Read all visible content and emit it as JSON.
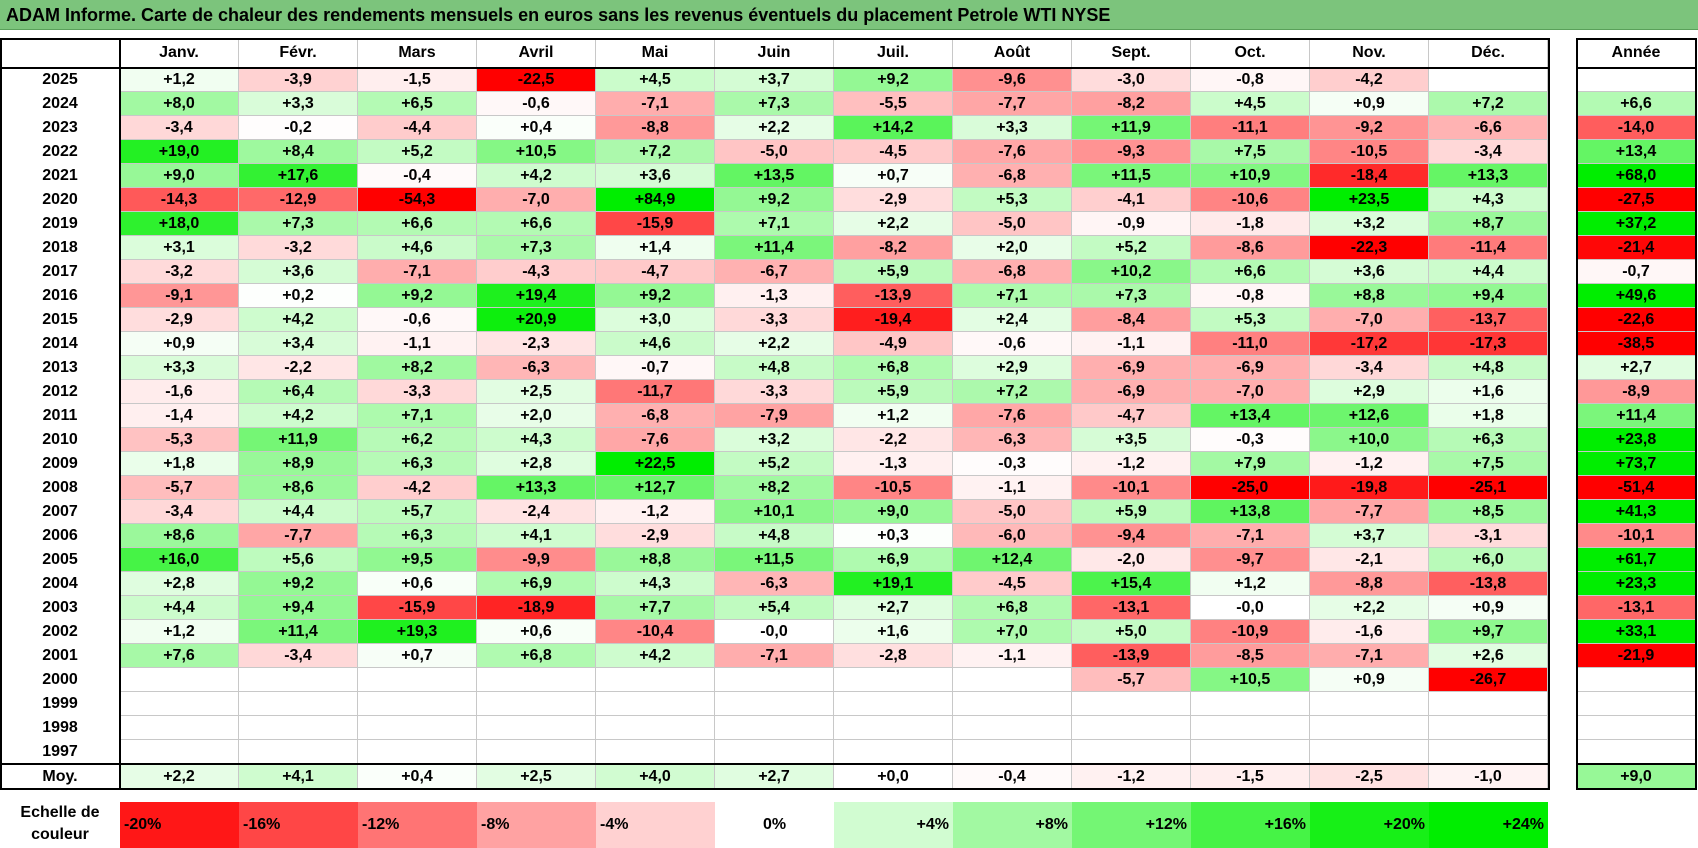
{
  "title": "ADAM Informe. Carte de chaleur des rendements mensuels en euros sans les revenus éventuels du placement Petrole WTI NYSE",
  "colors": {
    "title_bg": "#7cc47c",
    "positive_max": "#00ee00",
    "negative_max": "#ff0000",
    "neutral": "#ffffff"
  },
  "chart_data": {
    "type": "heatmap",
    "title": "ADAM Informe. Carte de chaleur des rendements mensuels en euros sans les revenus éventuels du placement Petrole WTI NYSE",
    "columns": [
      "Janv.",
      "Févr.",
      "Mars",
      "Avril",
      "Mai",
      "Juin",
      "Juil.",
      "Août",
      "Sept.",
      "Oct.",
      "Nov.",
      "Déc."
    ],
    "year_column_label": "Année",
    "rows": [
      {
        "year": "2025",
        "values": [
          1.2,
          -3.9,
          -1.5,
          -22.5,
          4.5,
          3.7,
          9.2,
          -9.6,
          -3.0,
          -0.8,
          -4.2,
          null
        ],
        "annual": null
      },
      {
        "year": "2024",
        "values": [
          8.0,
          3.3,
          6.5,
          -0.6,
          -7.1,
          7.3,
          -5.5,
          -7.7,
          -8.2,
          4.5,
          0.9,
          7.2
        ],
        "annual": 6.6
      },
      {
        "year": "2023",
        "values": [
          -3.4,
          -0.2,
          -4.4,
          0.4,
          -8.8,
          2.2,
          14.2,
          3.3,
          11.9,
          -11.1,
          -9.2,
          -6.6
        ],
        "annual": -14.0
      },
      {
        "year": "2022",
        "values": [
          19.0,
          8.4,
          5.2,
          10.5,
          7.2,
          -5.0,
          -4.5,
          -7.6,
          -9.3,
          7.5,
          -10.5,
          -3.4
        ],
        "annual": 13.4
      },
      {
        "year": "2021",
        "values": [
          9.0,
          17.6,
          -0.4,
          4.2,
          3.6,
          13.5,
          0.7,
          -6.8,
          11.5,
          10.9,
          -18.4,
          13.3
        ],
        "annual": 68.0
      },
      {
        "year": "2020",
        "values": [
          -14.3,
          -12.9,
          -54.3,
          -7.0,
          84.9,
          9.2,
          -2.9,
          5.3,
          -4.1,
          -10.6,
          23.5,
          4.3
        ],
        "annual": -27.5
      },
      {
        "year": "2019",
        "values": [
          18.0,
          7.3,
          6.6,
          6.6,
          -15.9,
          7.1,
          2.2,
          -5.0,
          -0.9,
          -1.8,
          3.2,
          8.7
        ],
        "annual": 37.2
      },
      {
        "year": "2018",
        "values": [
          3.1,
          -3.2,
          4.6,
          7.3,
          1.4,
          11.4,
          -8.2,
          2.0,
          5.2,
          -8.6,
          -22.3,
          -11.4
        ],
        "annual": -21.4
      },
      {
        "year": "2017",
        "values": [
          -3.2,
          3.6,
          -7.1,
          -4.3,
          -4.7,
          -6.7,
          5.9,
          -6.8,
          10.2,
          6.6,
          3.6,
          4.4
        ],
        "annual": -0.7
      },
      {
        "year": "2016",
        "values": [
          -9.1,
          0.2,
          9.2,
          19.4,
          9.2,
          -1.3,
          -13.9,
          7.1,
          7.3,
          -0.8,
          8.8,
          9.4
        ],
        "annual": 49.6
      },
      {
        "year": "2015",
        "values": [
          -2.9,
          4.2,
          -0.6,
          20.9,
          3.0,
          -3.3,
          -19.4,
          2.4,
          -8.4,
          5.3,
          -7.0,
          -13.7
        ],
        "annual": -22.6
      },
      {
        "year": "2014",
        "values": [
          0.9,
          3.4,
          -1.1,
          -2.3,
          4.6,
          2.2,
          -4.9,
          -0.6,
          -1.1,
          -11.0,
          -17.2,
          -17.3
        ],
        "annual": -38.5
      },
      {
        "year": "2013",
        "values": [
          3.3,
          -2.2,
          8.2,
          -6.3,
          -0.7,
          4.8,
          6.8,
          2.9,
          -6.9,
          -6.9,
          -3.4,
          4.8
        ],
        "annual": 2.7
      },
      {
        "year": "2012",
        "values": [
          -1.6,
          6.4,
          -3.3,
          2.5,
          -11.7,
          -3.3,
          5.9,
          7.2,
          -6.9,
          -7.0,
          2.9,
          1.6
        ],
        "annual": -8.9
      },
      {
        "year": "2011",
        "values": [
          -1.4,
          4.2,
          7.1,
          2.0,
          -6.8,
          -7.9,
          1.2,
          -7.6,
          -4.7,
          13.4,
          12.6,
          1.8
        ],
        "annual": 11.4
      },
      {
        "year": "2010",
        "values": [
          -5.3,
          11.9,
          6.2,
          4.3,
          -7.6,
          3.2,
          -2.2,
          -6.3,
          3.5,
          -0.3,
          10.0,
          6.3
        ],
        "annual": 23.8
      },
      {
        "year": "2009",
        "values": [
          1.8,
          8.9,
          6.3,
          2.8,
          22.5,
          5.2,
          -1.3,
          -0.3,
          -1.2,
          7.9,
          -1.2,
          7.5
        ],
        "annual": 73.7
      },
      {
        "year": "2008",
        "values": [
          -5.7,
          8.6,
          -4.2,
          13.3,
          12.7,
          8.2,
          -10.5,
          -1.1,
          -10.1,
          -25.0,
          -19.8,
          -25.1
        ],
        "annual": -51.4
      },
      {
        "year": "2007",
        "values": [
          -3.4,
          4.4,
          5.7,
          -2.4,
          -1.2,
          10.1,
          9.0,
          -5.0,
          5.9,
          13.8,
          -7.7,
          8.5
        ],
        "annual": 41.3
      },
      {
        "year": "2006",
        "values": [
          8.6,
          -7.7,
          6.3,
          4.1,
          -2.9,
          4.8,
          0.3,
          -6.0,
          -9.4,
          -7.1,
          3.7,
          -3.1
        ],
        "annual": -10.1
      },
      {
        "year": "2005",
        "values": [
          16.0,
          5.6,
          9.5,
          -9.9,
          8.8,
          11.5,
          6.9,
          12.4,
          -2.0,
          -9.7,
          -2.1,
          6.0
        ],
        "annual": 61.7
      },
      {
        "year": "2004",
        "values": [
          2.8,
          9.2,
          0.6,
          6.9,
          4.3,
          -6.3,
          19.1,
          -4.5,
          15.4,
          1.2,
          -8.8,
          -13.8
        ],
        "annual": 23.3
      },
      {
        "year": "2003",
        "values": [
          4.4,
          9.4,
          -15.9,
          -18.9,
          7.7,
          5.4,
          2.7,
          6.8,
          -13.1,
          "-0,0",
          2.2,
          0.9
        ],
        "annual": -13.1
      },
      {
        "year": "2002",
        "values": [
          1.2,
          11.4,
          19.3,
          0.6,
          -10.4,
          "-0,0",
          1.6,
          7.0,
          5.0,
          -10.9,
          -1.6,
          9.7
        ],
        "annual": 33.1
      },
      {
        "year": "2001",
        "values": [
          7.6,
          -3.4,
          0.7,
          6.8,
          4.2,
          -7.1,
          -2.8,
          -1.1,
          -13.9,
          -8.5,
          -7.1,
          2.6
        ],
        "annual": -21.9
      },
      {
        "year": "2000",
        "values": [
          null,
          null,
          null,
          null,
          null,
          null,
          null,
          null,
          -5.7,
          10.5,
          0.9,
          -26.7
        ],
        "annual": null
      },
      {
        "year": "1999",
        "values": [
          null,
          null,
          null,
          null,
          null,
          null,
          null,
          null,
          null,
          null,
          null,
          null
        ],
        "annual": null
      },
      {
        "year": "1998",
        "values": [
          null,
          null,
          null,
          null,
          null,
          null,
          null,
          null,
          null,
          null,
          null,
          null
        ],
        "annual": null
      },
      {
        "year": "1997",
        "values": [
          null,
          null,
          null,
          null,
          null,
          null,
          null,
          null,
          null,
          null,
          null,
          null
        ],
        "annual": null
      }
    ],
    "average": {
      "label": "Moy.",
      "values": [
        2.2,
        4.1,
        0.4,
        2.5,
        4.0,
        2.7,
        "+0,0",
        -0.4,
        -1.2,
        -1.5,
        -2.5,
        -1.0
      ],
      "annual": 9.0
    },
    "scale": {
      "label_line1": "Echelle de",
      "label_line2": "couleur",
      "items": [
        "-20%",
        "-16%",
        "-12%",
        "-8%",
        "-4%",
        "0%",
        "+4%",
        "+8%",
        "+12%",
        "+16%",
        "+20%",
        "+24%"
      ],
      "values": [
        -20,
        -16,
        -12,
        -8,
        -4,
        0,
        4,
        8,
        12,
        16,
        20,
        24
      ]
    }
  }
}
